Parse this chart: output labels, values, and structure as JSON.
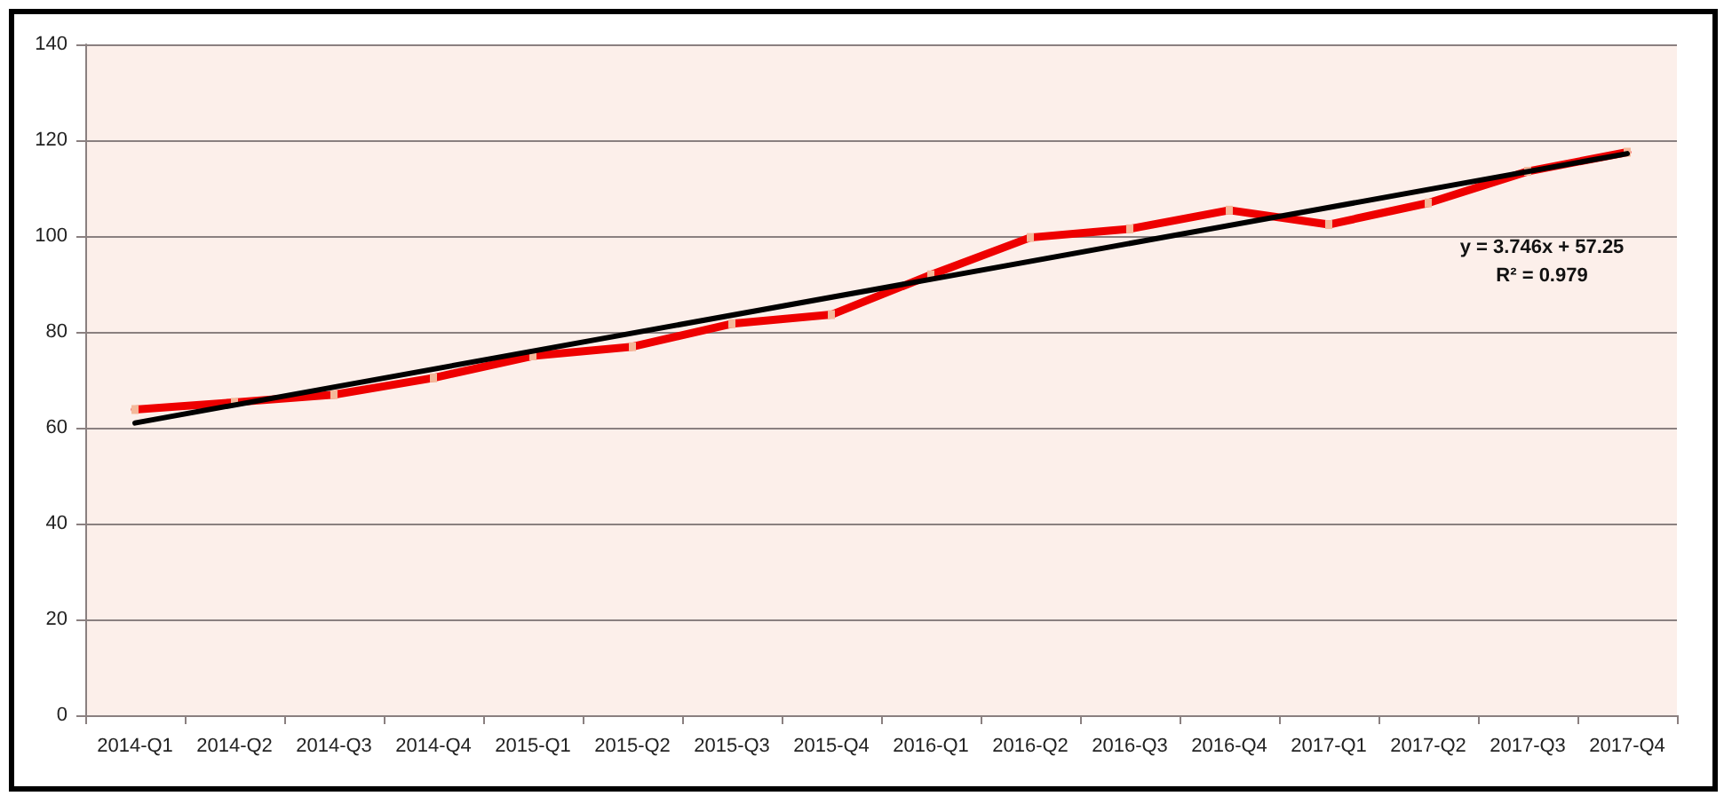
{
  "chart_data": {
    "type": "line",
    "categories": [
      "2014-Q1",
      "2014-Q2",
      "2014-Q3",
      "2014-Q4",
      "2015-Q1",
      "2015-Q2",
      "2015-Q3",
      "2015-Q4",
      "2016-Q1",
      "2016-Q2",
      "2016-Q3",
      "2016-Q4",
      "2017-Q1",
      "2017-Q2",
      "2017-Q3",
      "2017-Q4"
    ],
    "series": [
      {
        "color": "#ee0000",
        "values": [
          63.8,
          65.3,
          66.9,
          70.4,
          75.0,
          76.9,
          81.7,
          83.6,
          91.9,
          99.7,
          101.5,
          105.4,
          102.4,
          106.9,
          113.5,
          117.5
        ]
      },
      {
        "type": "line",
        "color": "#000000",
        "marker": "none",
        "x": [
          "2014-Q1",
          "2017-Q4"
        ],
        "values": [
          61.0,
          117.2
        ]
      }
    ],
    "ylim": [
      0,
      140
    ],
    "yticks": [
      0,
      20,
      40,
      60,
      80,
      100,
      120,
      140
    ],
    "grid": "y",
    "marker": "square",
    "line_style": "solid",
    "annotations": [
      "y = 3.746x + 57.25",
      "R² = 0.979"
    ]
  }
}
